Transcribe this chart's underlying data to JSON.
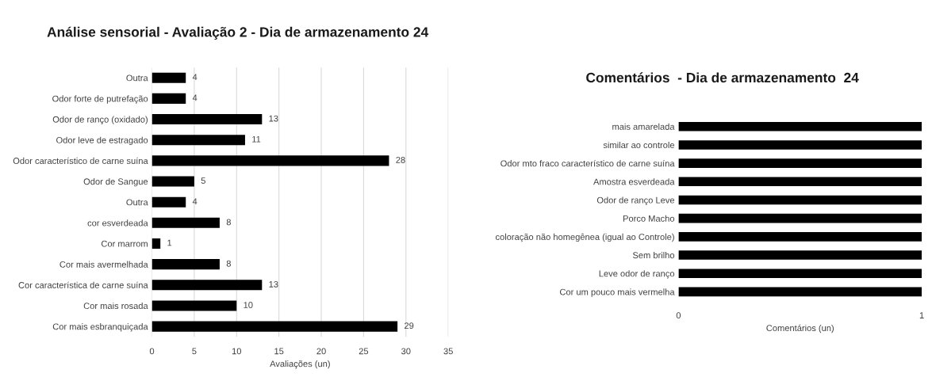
{
  "chart_data": [
    {
      "type": "bar",
      "orientation": "horizontal",
      "title": "Análise sensorial - Avaliação 2 - Dia de armazenamento 24",
      "xlabel": "Avaliações (un)",
      "categories": [
        "Outra",
        "Odor forte de putrefação",
        "Odor de ranço (oxidado)",
        "Odor leve de estragado",
        "Odor característico de carne suína",
        "Odor de Sangue",
        "Outra",
        "cor esverdeada",
        "Cor marrom",
        "Cor mais avermelhada",
        "Cor característica de carne suína",
        "Cor mais rosada",
        "Cor mais esbranquiçada"
      ],
      "values": [
        4,
        4,
        13,
        11,
        28,
        5,
        4,
        8,
        1,
        8,
        13,
        10,
        29
      ],
      "color": "#000000",
      "xlim": [
        0,
        35
      ],
      "xticks": [
        0,
        5,
        10,
        15,
        20,
        25,
        30,
        35
      ],
      "grid": "x",
      "data_labels": true
    },
    {
      "type": "bar",
      "orientation": "horizontal",
      "title": "Comentários  - Dia de armazenamento  24",
      "xlabel": "Comentários (un)",
      "categories": [
        "mais amarelada",
        "similar ao controle",
        "Odor mto fraco característico de carne suína",
        "Amostra esverdeada",
        "Odor de ranço Leve",
        "Porco Macho",
        "coloração não homegênea (igual ao Controle)",
        "Sem brilho",
        "Leve odor de ranço",
        "Cor um pouco mais vermelha"
      ],
      "values": [
        1,
        1,
        1,
        1,
        1,
        1,
        1,
        1,
        1,
        1
      ],
      "color": "#000000",
      "xlim": [
        0,
        1
      ],
      "xticks": [
        0,
        1
      ]
    }
  ]
}
